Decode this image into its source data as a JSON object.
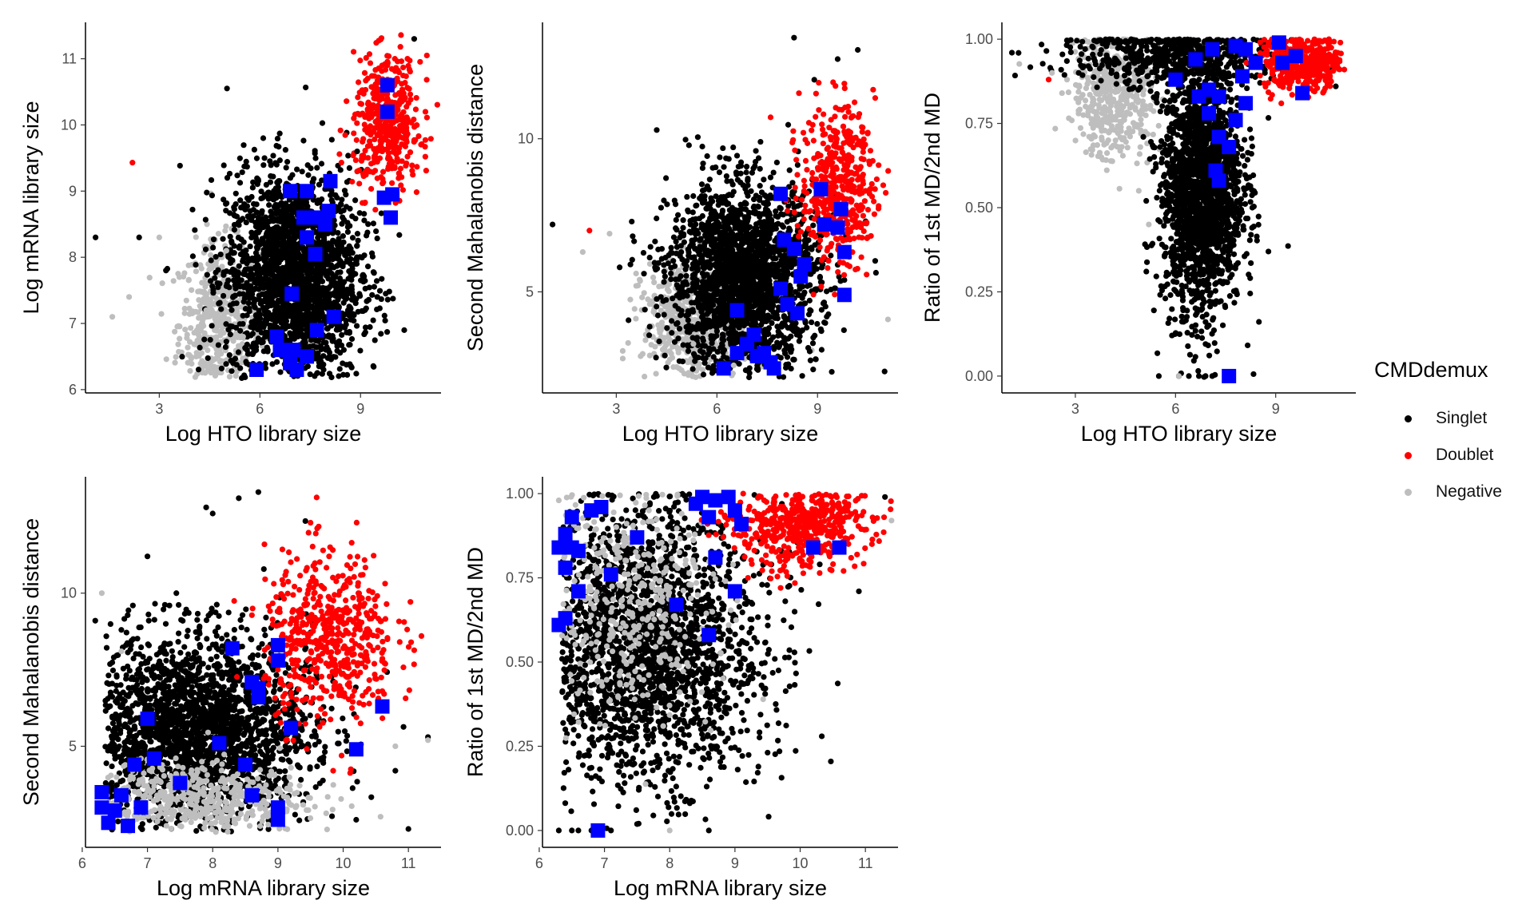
{
  "chart_data": [
    {
      "type": "scatter",
      "xlabel": "Log HTO library size",
      "ylabel": "Log mRNA library size",
      "xlim": [
        0.8,
        11.4
      ],
      "ylim": [
        5.95,
        11.55
      ],
      "xticks": [
        3,
        6,
        9
      ],
      "yticks": [
        6,
        7,
        8,
        9,
        10,
        11
      ],
      "series": [
        {
          "name": "Singlet",
          "points": [
            [
              1.1,
              8.3
            ],
            [
              2.4,
              8.3
            ],
            [
              3.2,
              7.8
            ],
            [
              4.8,
              7.6
            ],
            [
              5.9,
              8.8
            ],
            [
              6.5,
              9.4
            ],
            [
              7.2,
              8.6
            ],
            [
              7.6,
              7.1
            ],
            [
              8.3,
              8.9
            ],
            [
              8.9,
              9.6
            ],
            [
              9.5,
              7.4
            ],
            [
              10.6,
              11.3
            ],
            [
              6.1,
              9.8
            ],
            [
              5.2,
              6.4
            ],
            [
              7.9,
              6.3
            ]
          ]
        },
        {
          "name": "Doublet",
          "points": [
            [
              2.2,
              9.43
            ],
            [
              9.8,
              10.9
            ],
            [
              9.3,
              10.3
            ],
            [
              10.1,
              9.8
            ],
            [
              10.4,
              11.0
            ],
            [
              8.8,
              10.1
            ],
            [
              9.6,
              9.7
            ]
          ]
        },
        {
          "name": "Negative",
          "points": [
            [
              1.6,
              7.1
            ],
            [
              2.1,
              7.4
            ],
            [
              3.0,
              8.3
            ],
            [
              3.6,
              7.7
            ],
            [
              4.1,
              6.5
            ],
            [
              4.4,
              7.2
            ],
            [
              5.0,
              8.1
            ],
            [
              5.5,
              6.8
            ]
          ]
        }
      ],
      "highlighted": [
        [
          9.8,
          10.6
        ],
        [
          9.8,
          10.2
        ],
        [
          8.1,
          9.15
        ],
        [
          6.9,
          9.0
        ],
        [
          7.4,
          9.0
        ],
        [
          9.7,
          8.9
        ],
        [
          9.95,
          8.95
        ],
        [
          7.3,
          8.6
        ],
        [
          7.7,
          8.6
        ],
        [
          8.05,
          8.7
        ],
        [
          7.95,
          8.5
        ],
        [
          7.4,
          8.3
        ],
        [
          7.65,
          8.05
        ],
        [
          9.9,
          8.6
        ],
        [
          6.95,
          7.45
        ],
        [
          8.2,
          7.1
        ],
        [
          7.7,
          6.9
        ],
        [
          7.0,
          6.6
        ],
        [
          6.5,
          6.8
        ],
        [
          6.6,
          6.6
        ],
        [
          5.9,
          6.3
        ],
        [
          6.9,
          6.4
        ],
        [
          7.1,
          6.3
        ],
        [
          7.4,
          6.5
        ]
      ]
    },
    {
      "type": "scatter",
      "xlabel": "Log HTO library size",
      "ylabel": "Second Mahalanobis distance",
      "xlim": [
        0.8,
        11.4
      ],
      "ylim": [
        1.7,
        13.8
      ],
      "xticks": [
        3,
        6,
        9
      ],
      "yticks": [
        5,
        10
      ],
      "series": [
        {
          "name": "Singlet",
          "points": [
            [
              1.1,
              7.2
            ],
            [
              3.1,
              5.8
            ],
            [
              5.6,
              2.3
            ],
            [
              7.3,
              9.9
            ],
            [
              8.3,
              13.3
            ],
            [
              9.6,
              12.6
            ],
            [
              10.2,
              12.9
            ],
            [
              11.0,
              2.4
            ],
            [
              6.2,
              8.1
            ],
            [
              8.6,
              5.5
            ]
          ]
        },
        {
          "name": "Doublet",
          "points": [
            [
              2.2,
              7.0
            ],
            [
              7.6,
              10.7
            ],
            [
              9.8,
              11.8
            ],
            [
              10.5,
              10.2
            ],
            [
              9.3,
              9.3
            ],
            [
              10.1,
              8.3
            ]
          ]
        },
        {
          "name": "Negative",
          "points": [
            [
              2.0,
              6.3
            ],
            [
              2.8,
              6.9
            ],
            [
              4.0,
              4.6
            ],
            [
              5.3,
              3.3
            ],
            [
              6.5,
              2.6
            ],
            [
              11.1,
              4.1
            ]
          ]
        }
      ],
      "highlighted": [
        [
          7.9,
          8.2
        ],
        [
          9.1,
          8.35
        ],
        [
          9.7,
          7.7
        ],
        [
          9.2,
          7.2
        ],
        [
          9.6,
          7.1
        ],
        [
          9.8,
          6.3
        ],
        [
          8.0,
          6.7
        ],
        [
          8.3,
          6.4
        ],
        [
          8.6,
          5.9
        ],
        [
          8.5,
          5.5
        ],
        [
          7.9,
          5.1
        ],
        [
          8.1,
          4.6
        ],
        [
          8.4,
          4.3
        ],
        [
          9.8,
          4.9
        ],
        [
          6.6,
          4.4
        ],
        [
          6.2,
          2.5
        ],
        [
          6.6,
          3.0
        ],
        [
          6.9,
          3.3
        ],
        [
          7.1,
          3.6
        ],
        [
          7.4,
          3.0
        ],
        [
          7.6,
          2.7
        ],
        [
          7.2,
          2.9
        ],
        [
          7.7,
          2.5
        ]
      ]
    },
    {
      "type": "scatter",
      "xlabel": "Log HTO library size",
      "ylabel": "Ratio of 1st MD/2nd MD",
      "xlim": [
        0.8,
        11.4
      ],
      "ylim": [
        -0.05,
        1.05
      ],
      "xticks": [
        3,
        6,
        9
      ],
      "yticks": [
        "0.00",
        "0.25",
        "0.50",
        "0.75",
        "1.00"
      ],
      "series": [
        {
          "name": "Singlet",
          "points": [
            [
              1.1,
              0.96
            ],
            [
              5.5,
              0.0
            ],
            [
              6.1,
              0.0
            ],
            [
              6.4,
              0.0
            ],
            [
              6.7,
              0.0
            ],
            [
              6.9,
              0.0
            ],
            [
              7.1,
              0.0
            ],
            [
              6.8,
              0.2
            ],
            [
              7.3,
              0.22
            ],
            [
              10.8,
              0.86
            ],
            [
              3.1,
              0.9
            ],
            [
              8.3,
              0.5
            ]
          ]
        },
        {
          "name": "Doublet",
          "points": [
            [
              2.2,
              0.88
            ],
            [
              9.5,
              0.97
            ],
            [
              10.2,
              0.92
            ],
            [
              10.7,
              0.95
            ],
            [
              9.9,
              0.86
            ],
            [
              8.9,
              0.9
            ]
          ]
        },
        {
          "name": "Negative",
          "points": [
            [
              2.3,
              0.9
            ],
            [
              2.6,
              0.84
            ],
            [
              3.8,
              0.78
            ],
            [
              4.3,
              0.68
            ],
            [
              4.9,
              0.55
            ],
            [
              5.2,
              0.45
            ],
            [
              6.1,
              0.0
            ]
          ]
        }
      ],
      "highlighted": [
        [
          6.0,
          0.88
        ],
        [
          6.6,
          0.94
        ],
        [
          7.1,
          0.97
        ],
        [
          7.8,
          0.98
        ],
        [
          8.1,
          0.97
        ],
        [
          8.4,
          0.93
        ],
        [
          9.1,
          0.99
        ],
        [
          9.2,
          0.93
        ],
        [
          9.6,
          0.95
        ],
        [
          8.0,
          0.89
        ],
        [
          6.7,
          0.83
        ],
        [
          7.0,
          0.85
        ],
        [
          7.3,
          0.83
        ],
        [
          8.1,
          0.81
        ],
        [
          9.8,
          0.84
        ],
        [
          7.0,
          0.78
        ],
        [
          7.8,
          0.76
        ],
        [
          7.3,
          0.71
        ],
        [
          7.6,
          0.68
        ],
        [
          7.2,
          0.61
        ],
        [
          7.3,
          0.58
        ],
        [
          7.6,
          0.0
        ]
      ]
    },
    {
      "type": "scatter",
      "xlabel": "Log mRNA library size",
      "ylabel": "Second Mahalanobis distance",
      "xlim": [
        6.05,
        11.5
      ],
      "ylim": [
        1.7,
        13.8
      ],
      "xticks": [
        6,
        7,
        8,
        9,
        10,
        11
      ],
      "yticks": [
        5,
        10
      ],
      "series": [
        {
          "name": "Singlet",
          "points": [
            [
              6.2,
              9.1
            ],
            [
              6.6,
              8.8
            ],
            [
              7.0,
              11.2
            ],
            [
              7.9,
              12.8
            ],
            [
              8.0,
              12.6
            ],
            [
              8.4,
              13.1
            ],
            [
              8.7,
              13.3
            ],
            [
              10.2,
              2.6
            ],
            [
              10.8,
              4.2
            ],
            [
              11.0,
              2.3
            ],
            [
              11.3,
              5.3
            ],
            [
              6.4,
              6.3
            ],
            [
              7.5,
              3.1
            ]
          ]
        },
        {
          "name": "Doublet",
          "points": [
            [
              9.5,
              12.3
            ],
            [
              9.8,
              11.5
            ],
            [
              10.3,
              10.6
            ],
            [
              11.2,
              8.6
            ],
            [
              10.6,
              6.8
            ],
            [
              9.0,
              7.5
            ],
            [
              9.8,
              8.9
            ],
            [
              10.0,
              8.2
            ]
          ]
        },
        {
          "name": "Negative",
          "points": [
            [
              6.3,
              10.0
            ],
            [
              6.6,
              8.1
            ],
            [
              7.2,
              3.5
            ],
            [
              8.2,
              3.0
            ],
            [
              9.2,
              4.3
            ],
            [
              10.8,
              5.0
            ],
            [
              11.3,
              5.2
            ],
            [
              6.9,
              4.6
            ]
          ]
        }
      ],
      "highlighted": [
        [
          8.3,
          8.2
        ],
        [
          9.0,
          8.3
        ],
        [
          9.0,
          7.8
        ],
        [
          8.6,
          7.1
        ],
        [
          8.7,
          6.9
        ],
        [
          8.7,
          6.6
        ],
        [
          9.2,
          5.6
        ],
        [
          10.6,
          6.3
        ],
        [
          7.0,
          5.9
        ],
        [
          8.1,
          5.1
        ],
        [
          10.2,
          4.9
        ],
        [
          6.8,
          4.4
        ],
        [
          7.1,
          4.6
        ],
        [
          7.5,
          3.8
        ],
        [
          8.5,
          4.4
        ],
        [
          8.6,
          3.4
        ],
        [
          9.0,
          3.0
        ],
        [
          9.0,
          2.6
        ],
        [
          6.3,
          3.5
        ],
        [
          6.3,
          3.0
        ],
        [
          6.4,
          2.5
        ],
        [
          6.5,
          2.9
        ],
        [
          6.6,
          3.4
        ],
        [
          6.7,
          2.4
        ],
        [
          6.9,
          3.0
        ]
      ]
    },
    {
      "type": "scatter",
      "xlabel": "Log mRNA library size",
      "ylabel": "Ratio of 1st MD/2nd MD",
      "xlim": [
        6.05,
        11.5
      ],
      "ylim": [
        -0.05,
        1.05
      ],
      "xticks": [
        6,
        7,
        8,
        9,
        10,
        11
      ],
      "yticks": [
        "0.00",
        "0.25",
        "0.50",
        "0.75",
        "1.00"
      ],
      "series": [
        {
          "name": "Singlet",
          "points": [
            [
              6.3,
              0.0
            ],
            [
              6.5,
              0.0
            ],
            [
              6.6,
              0.0
            ],
            [
              6.8,
              0.0
            ],
            [
              7.1,
              0.0
            ],
            [
              8.6,
              0.0
            ],
            [
              7.6,
              0.2
            ],
            [
              6.4,
              0.3
            ],
            [
              8.4,
              0.35
            ],
            [
              10.3,
              0.79
            ],
            [
              10.9,
              0.71
            ],
            [
              11.3,
              0.99
            ]
          ]
        },
        {
          "name": "Doublet",
          "points": [
            [
              9.6,
              0.98
            ],
            [
              10.2,
              0.9
            ],
            [
              10.7,
              0.93
            ],
            [
              11.1,
              0.85
            ],
            [
              10.0,
              0.8
            ],
            [
              9.2,
              0.75
            ],
            [
              9.7,
              0.72
            ]
          ]
        },
        {
          "name": "Negative",
          "points": [
            [
              6.3,
              0.98
            ],
            [
              6.9,
              0.95
            ],
            [
              7.4,
              0.85
            ],
            [
              8.0,
              0.0
            ],
            [
              8.5,
              0.6
            ],
            [
              11.4,
              0.92
            ]
          ]
        }
      ],
      "highlighted": [
        [
          6.3,
          0.84
        ],
        [
          6.4,
          0.88
        ],
        [
          6.5,
          0.84
        ],
        [
          6.6,
          0.83
        ],
        [
          6.4,
          0.78
        ],
        [
          6.5,
          0.93
        ],
        [
          6.8,
          0.95
        ],
        [
          6.95,
          0.96
        ],
        [
          7.5,
          0.87
        ],
        [
          7.1,
          0.76
        ],
        [
          6.6,
          0.71
        ],
        [
          6.3,
          0.61
        ],
        [
          6.4,
          0.63
        ],
        [
          8.1,
          0.67
        ],
        [
          8.4,
          0.97
        ],
        [
          8.5,
          0.99
        ],
        [
          8.7,
          0.98
        ],
        [
          8.9,
          0.99
        ],
        [
          8.6,
          0.93
        ],
        [
          9.0,
          0.95
        ],
        [
          9.1,
          0.91
        ],
        [
          8.7,
          0.81
        ],
        [
          9.0,
          0.71
        ],
        [
          8.6,
          0.58
        ],
        [
          10.2,
          0.84
        ],
        [
          10.6,
          0.84
        ],
        [
          6.9,
          0.0
        ]
      ]
    }
  ],
  "legend": {
    "title": "CMDdemux",
    "items": [
      {
        "label": "Singlet",
        "color": "#000000"
      },
      {
        "label": "Doublet",
        "color": "#ff0000"
      },
      {
        "label": "Negative",
        "color": "#bebebe"
      }
    ]
  },
  "colors": {
    "Singlet": "#000000",
    "Doublet": "#ff0000",
    "Negative": "#bebebe",
    "highlight": "#0000ff"
  }
}
